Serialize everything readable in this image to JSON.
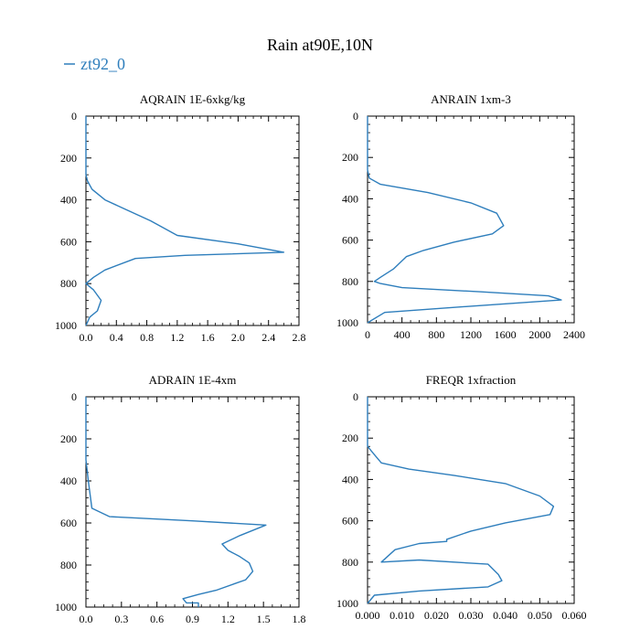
{
  "figure": {
    "title": "Rain at90E,10N",
    "legend": {
      "label": "zt92_0",
      "color": "#2e7ebc",
      "placement": "top-left"
    }
  },
  "chart_data": [
    {
      "type": "line",
      "title": "AQRAIN  1E-6xkg/kg",
      "xlim": [
        0,
        2.8
      ],
      "ylim": [
        1000,
        0
      ],
      "y_inverted": true,
      "xticks": [
        "0.0",
        "0.4",
        "0.8",
        "1.2",
        "1.6",
        "2.0",
        "2.4",
        "2.8"
      ],
      "yticks": [
        "0",
        "200",
        "400",
        "600",
        "800",
        "1000"
      ],
      "series": [
        {
          "name": "zt92_0",
          "color": "#2e7ebc",
          "x": [
            0,
            0,
            0.02,
            0.08,
            0.25,
            0.55,
            0.85,
            1.2,
            2.0,
            2.6,
            1.3,
            0.65,
            0.25,
            0.1,
            0,
            0.1,
            0.2,
            0.15,
            0.05,
            0
          ],
          "y": [
            0,
            280,
            310,
            350,
            400,
            450,
            500,
            570,
            610,
            650,
            665,
            680,
            735,
            770,
            800,
            830,
            880,
            930,
            960,
            1000
          ]
        }
      ]
    },
    {
      "type": "line",
      "title": "ANRAIN  1xm-3",
      "xlim": [
        0,
        2400
      ],
      "ylim": [
        1000,
        0
      ],
      "y_inverted": true,
      "xticks": [
        "0",
        "400",
        "800",
        "1200",
        "1600",
        "2000",
        "2400"
      ],
      "yticks": [
        "0",
        "200",
        "400",
        "600",
        "800",
        "1000"
      ],
      "series": [
        {
          "name": "zt92_0",
          "color": "#2e7ebc",
          "x": [
            0,
            0,
            20,
            150,
            700,
            1200,
            1500,
            1580,
            1450,
            1000,
            650,
            450,
            300,
            150,
            80,
            150,
            400,
            1300,
            2100,
            2250,
            1200,
            200,
            0
          ],
          "y": [
            0,
            260,
            300,
            330,
            370,
            420,
            470,
            530,
            570,
            610,
            650,
            680,
            740,
            780,
            800,
            810,
            830,
            850,
            870,
            890,
            920,
            950,
            1000
          ]
        }
      ]
    },
    {
      "type": "line",
      "title": "ADRAIN  1E-4xm",
      "xlim": [
        0,
        1.8
      ],
      "ylim": [
        1000,
        0
      ],
      "y_inverted": true,
      "xticks": [
        "0.0",
        "0.3",
        "0.6",
        "0.9",
        "1.2",
        "1.5",
        "1.8"
      ],
      "yticks": [
        "0",
        "200",
        "400",
        "600",
        "800",
        "1000"
      ],
      "series": [
        {
          "name": "zt92_0",
          "color": "#2e7ebc",
          "x": [
            0,
            0,
            0.02,
            0.05,
            0.2,
            0.9,
            1.52,
            1.3,
            1.15,
            1.2,
            1.3,
            1.38,
            1.41,
            1.35,
            1.25,
            1.1,
            0.95,
            0.82,
            0.85,
            0.95,
            0.95
          ],
          "y": [
            0,
            300,
            400,
            530,
            570,
            590,
            610,
            660,
            700,
            730,
            760,
            790,
            830,
            870,
            890,
            920,
            940,
            960,
            980,
            980,
            1000
          ]
        }
      ]
    },
    {
      "type": "line",
      "title": "FREQR  1xfraction",
      "xlim": [
        0,
        0.06
      ],
      "ylim": [
        1000,
        0
      ],
      "y_inverted": true,
      "xticks": [
        "0.000",
        "0.010",
        "0.020",
        "0.030",
        "0.040",
        "0.050",
        "0.060"
      ],
      "yticks": [
        "0",
        "200",
        "400",
        "600",
        "800",
        "1000"
      ],
      "series": [
        {
          "name": "zt92_0",
          "color": "#2e7ebc",
          "x": [
            0,
            0,
            0.001,
            0.002,
            0.004,
            0.012,
            0.025,
            0.04,
            0.05,
            0.054,
            0.053,
            0.04,
            0.03,
            0.023,
            0.023,
            0.015,
            0.008,
            0.004,
            0.015,
            0.035,
            0.038,
            0.039,
            0.035,
            0.015,
            0.002,
            0
          ],
          "y": [
            0,
            240,
            260,
            280,
            320,
            350,
            380,
            420,
            480,
            530,
            570,
            610,
            650,
            690,
            700,
            710,
            740,
            800,
            790,
            810,
            860,
            890,
            920,
            940,
            960,
            1000
          ]
        }
      ]
    }
  ]
}
